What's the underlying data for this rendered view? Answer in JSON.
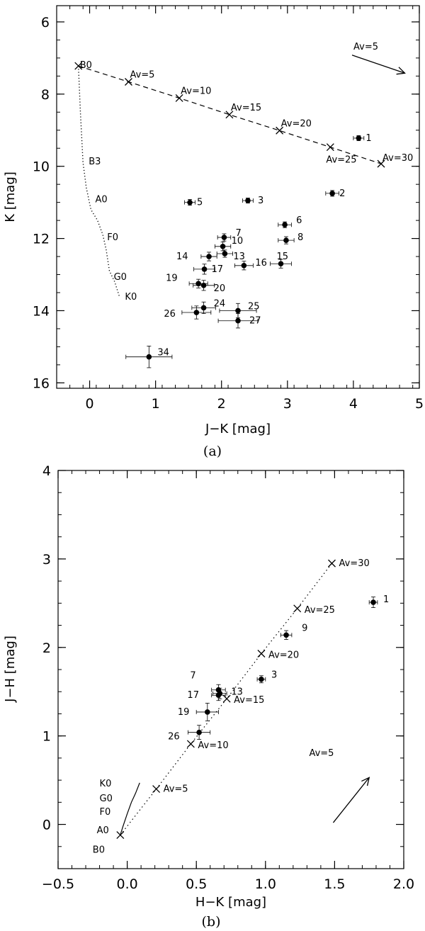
{
  "chart_data": [
    {
      "type": "scatter",
      "caption": "(a)",
      "xlabel": "J−K [mag]",
      "ylabel": "K [mag]",
      "xlim": [
        -0.5,
        5
      ],
      "ylim": [
        16.15,
        5.55
      ],
      "xticks": [
        0,
        1,
        2,
        3,
        4,
        5
      ],
      "yticks": [
        6,
        8,
        10,
        12,
        14,
        16
      ],
      "stars": [
        {
          "label": "1",
          "x": 4.08,
          "y": 9.22,
          "xerr": 0.08,
          "yerr": 0.07
        },
        {
          "label": "2",
          "x": 3.68,
          "y": 10.75,
          "xerr": 0.1,
          "yerr": 0.08
        },
        {
          "label": "3",
          "x": 2.4,
          "y": 10.95,
          "xerr": 0.08,
          "yerr": 0.07
        },
        {
          "label": "5",
          "x": 1.52,
          "y": 11.0,
          "xerr": 0.08,
          "yerr": 0.08
        },
        {
          "label": "6",
          "x": 2.96,
          "y": 11.62,
          "xerr": 0.1,
          "yerr": 0.08
        },
        {
          "label": "7",
          "x": 2.04,
          "y": 11.97,
          "xerr": 0.1,
          "yerr": 0.1
        },
        {
          "label": "8",
          "x": 2.98,
          "y": 12.05,
          "xerr": 0.12,
          "yerr": 0.1
        },
        {
          "label": "10",
          "x": 2.02,
          "y": 12.22,
          "xerr": 0.12,
          "yerr": 0.12
        },
        {
          "label": "13",
          "x": 2.05,
          "y": 12.42,
          "xerr": 0.12,
          "yerr": 0.1
        },
        {
          "label": "14",
          "x": 1.81,
          "y": 12.5,
          "xerr": 0.12,
          "yerr": 0.12
        },
        {
          "label": "16",
          "x": 2.34,
          "y": 12.75,
          "xerr": 0.14,
          "yerr": 0.12
        },
        {
          "label": "15",
          "x": 2.9,
          "y": 12.7,
          "xerr": 0.16,
          "yerr": 0.12
        },
        {
          "label": "17",
          "x": 1.74,
          "y": 12.85,
          "xerr": 0.16,
          "yerr": 0.14
        },
        {
          "label": "19",
          "x": 1.65,
          "y": 13.25,
          "xerr": 0.14,
          "yerr": 0.12
        },
        {
          "label": "20",
          "x": 1.73,
          "y": 13.3,
          "xerr": 0.16,
          "yerr": 0.14
        },
        {
          "label": "24",
          "x": 1.73,
          "y": 13.92,
          "xerr": 0.18,
          "yerr": 0.16
        },
        {
          "label": "26",
          "x": 1.62,
          "y": 14.05,
          "xerr": 0.22,
          "yerr": 0.18
        },
        {
          "label": "25",
          "x": 2.25,
          "y": 14.0,
          "xerr": 0.28,
          "yerr": 0.2
        },
        {
          "label": "27",
          "x": 2.25,
          "y": 14.28,
          "xerr": 0.3,
          "yerr": 0.2
        },
        {
          "label": "34",
          "x": 0.9,
          "y": 15.28,
          "xerr": 0.35,
          "yerr": 0.3
        }
      ],
      "reddening_line": [
        {
          "label": "B0",
          "x": -0.17,
          "y": 7.22
        },
        {
          "label": "Av=5",
          "x": 0.59,
          "y": 7.66
        },
        {
          "label": "Av=10",
          "x": 1.36,
          "y": 8.11
        },
        {
          "label": "Av=15",
          "x": 2.12,
          "y": 8.57
        },
        {
          "label": "Av=20",
          "x": 2.88,
          "y": 9.01
        },
        {
          "label": "Av=25",
          "x": 3.65,
          "y": 9.47
        },
        {
          "label": "Av=30",
          "x": 4.42,
          "y": 9.93
        }
      ],
      "main_sequence": {
        "points": [
          [
            -0.17,
            7.22
          ],
          [
            -0.14,
            8.5
          ],
          [
            -0.1,
            9.9
          ],
          [
            -0.05,
            10.6
          ],
          [
            0.02,
            11.2
          ],
          [
            0.12,
            11.5
          ],
          [
            0.2,
            11.9
          ],
          [
            0.25,
            12.3
          ],
          [
            0.3,
            12.9
          ],
          [
            0.38,
            13.2
          ],
          [
            0.45,
            13.6
          ]
        ],
        "labels": [
          {
            "text": "B3",
            "x": -0.1,
            "y": 9.85
          },
          {
            "text": "A0",
            "x": 0.0,
            "y": 10.9
          },
          {
            "text": "F0",
            "x": 0.18,
            "y": 11.95
          },
          {
            "text": "G0",
            "x": 0.28,
            "y": 13.05
          },
          {
            "text": "K0",
            "x": 0.45,
            "y": 13.6
          }
        ]
      },
      "arrow": {
        "label": "Av=5",
        "x0": 3.98,
        "y0": 6.92,
        "x1": 4.78,
        "y1": 7.42
      }
    },
    {
      "type": "scatter",
      "caption": "(b)",
      "xlabel": "H−K [mag]",
      "ylabel": "J−H [mag]",
      "xlim": [
        -0.5,
        2.0
      ],
      "ylim": [
        -0.5,
        4.0
      ],
      "xticks": [
        -0.5,
        0.0,
        0.5,
        1.0,
        1.5,
        2.0
      ],
      "yticks": [
        0,
        1,
        2,
        3,
        4
      ],
      "stars": [
        {
          "label": "1",
          "x": 1.78,
          "y": 2.51,
          "xerr": 0.03,
          "yerr": 0.06
        },
        {
          "label": "9",
          "x": 1.15,
          "y": 2.14,
          "xerr": 0.04,
          "yerr": 0.05
        },
        {
          "label": "3",
          "x": 0.97,
          "y": 1.64,
          "xerr": 0.03,
          "yerr": 0.04
        },
        {
          "label": "7",
          "x": 0.66,
          "y": 1.52,
          "xerr": 0.05,
          "yerr": 0.06
        },
        {
          "label": "13",
          "x": 0.67,
          "y": 1.48,
          "xerr": 0.05,
          "yerr": 0.06
        },
        {
          "label": "17",
          "x": 0.66,
          "y": 1.46,
          "xerr": 0.05,
          "yerr": 0.06
        },
        {
          "label": "19",
          "x": 0.58,
          "y": 1.27,
          "xerr": 0.08,
          "yerr": 0.1
        },
        {
          "label": "26",
          "x": 0.52,
          "y": 1.04,
          "xerr": 0.08,
          "yerr": 0.08
        }
      ],
      "reddening_line": [
        {
          "label": "B0",
          "x": -0.05,
          "y": -0.12
        },
        {
          "label": "Av=5",
          "x": 0.21,
          "y": 0.4
        },
        {
          "label": "Av=10",
          "x": 0.46,
          "y": 0.91
        },
        {
          "label": "Av=15",
          "x": 0.72,
          "y": 1.42
        },
        {
          "label": "Av=20",
          "x": 0.97,
          "y": 1.93
        },
        {
          "label": "Av=25",
          "x": 1.23,
          "y": 2.44
        },
        {
          "label": "Av=30",
          "x": 1.48,
          "y": 2.95
        }
      ],
      "main_sequence": {
        "points": [
          [
            -0.05,
            -0.12
          ],
          [
            -0.03,
            -0.02
          ],
          [
            0.0,
            0.12
          ],
          [
            0.03,
            0.25
          ],
          [
            0.06,
            0.35
          ],
          [
            0.09,
            0.47
          ]
        ],
        "labels": [
          {
            "text": "K0",
            "x": -0.2,
            "y": 0.47
          },
          {
            "text": "G0",
            "x": -0.2,
            "y": 0.3
          },
          {
            "text": "F0",
            "x": -0.2,
            "y": 0.15
          },
          {
            "text": "A0",
            "x": -0.22,
            "y": -0.06
          },
          {
            "text": "B0",
            "x": -0.25,
            "y": -0.28
          }
        ]
      },
      "arrow": {
        "label": "Av=5",
        "x0": 1.49,
        "y0": 0.02,
        "x1": 1.75,
        "y1": 0.53
      }
    }
  ]
}
